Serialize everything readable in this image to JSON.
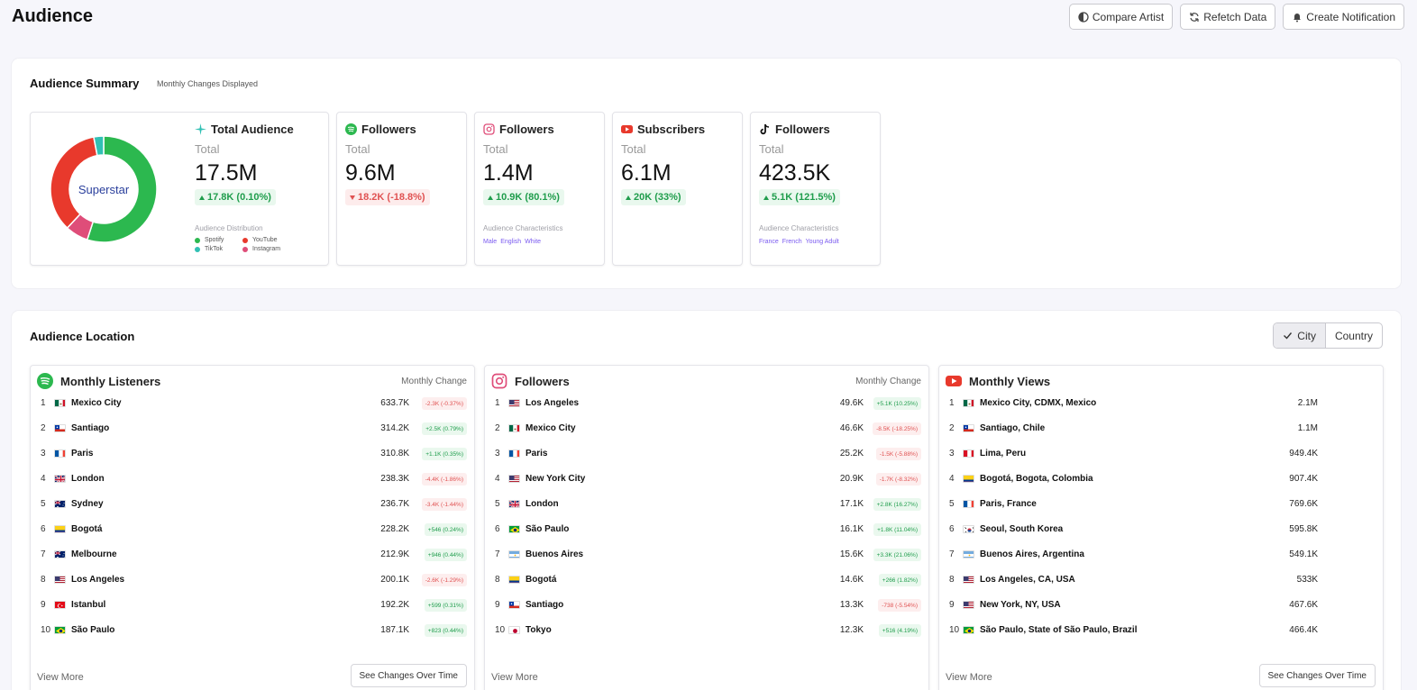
{
  "page": {
    "title": "Audience"
  },
  "actions": {
    "compare": "Compare Artist",
    "refetch": "Refetch Data",
    "notify": "Create Notification"
  },
  "colors": {
    "spotify": "#2cb84f",
    "youtube": "#e8392c",
    "tiktok": "#31c0b4",
    "instagram": "#df4d79",
    "accent_tag": "#7a5af0"
  },
  "summary": {
    "title": "Audience Summary",
    "subtitle": "Monthly Changes Displayed",
    "donut_label": "Superstar",
    "distribution_fractions": {
      "spotify": 0.55,
      "instagram": 0.07,
      "youtube": 0.35,
      "tiktok": 0.03
    },
    "total": {
      "title": "Total Audience",
      "icon": "sparkle-icon",
      "total_label": "Total",
      "value": "17.5M",
      "change": "17.8K (0.10%)",
      "direction": "up",
      "dist_label": "Audience Distribution",
      "legend": [
        "Spotify",
        "YouTube",
        "TikTok",
        "Instagram"
      ]
    },
    "cards": [
      {
        "title": "Followers",
        "icon": "spotify-icon",
        "total_label": "Total",
        "value": "9.6M",
        "change": "18.2K (-18.8%)",
        "direction": "down",
        "char_label": "",
        "tags": []
      },
      {
        "title": "Followers",
        "icon": "instagram-icon",
        "total_label": "Total",
        "value": "1.4M",
        "change": "10.9K (80.1%)",
        "direction": "up",
        "char_label": "Audience Characteristics",
        "tags": [
          "Male",
          "English",
          "White"
        ]
      },
      {
        "title": "Subscribers",
        "icon": "youtube-icon",
        "total_label": "Total",
        "value": "6.1M",
        "change": "20K (33%)",
        "direction": "up",
        "char_label": "",
        "tags": []
      },
      {
        "title": "Followers",
        "icon": "tiktok-icon",
        "total_label": "Total",
        "value": "423.5K",
        "change": "5.1K (121.5%)",
        "direction": "up",
        "char_label": "Audience Characteristics",
        "tags": [
          "France",
          "French",
          "Young Adult"
        ]
      }
    ]
  },
  "location": {
    "title": "Audience Location",
    "toggle": {
      "city": "City",
      "country": "Country",
      "selected": "City"
    },
    "view_more": "View More",
    "see_changes": "See Changes Over Time",
    "monthly_change_label": "Monthly Change",
    "spotify": {
      "title": "Monthly Listeners",
      "rows": [
        {
          "rank": "1",
          "flag": "mx",
          "name": "Mexico City",
          "value": "633.7K",
          "change": "-2.3K (-0.37%)",
          "dir": "down"
        },
        {
          "rank": "2",
          "flag": "cl",
          "name": "Santiago",
          "value": "314.2K",
          "change": "+2.5K (0.79%)",
          "dir": "up"
        },
        {
          "rank": "3",
          "flag": "fr",
          "name": "Paris",
          "value": "310.8K",
          "change": "+1.1K (0.35%)",
          "dir": "up"
        },
        {
          "rank": "4",
          "flag": "gb",
          "name": "London",
          "value": "238.3K",
          "change": "-4.4K (-1.86%)",
          "dir": "down"
        },
        {
          "rank": "5",
          "flag": "au",
          "name": "Sydney",
          "value": "236.7K",
          "change": "-3.4K (-1.44%)",
          "dir": "down"
        },
        {
          "rank": "6",
          "flag": "co",
          "name": "Bogotá",
          "value": "228.2K",
          "change": "+546 (0.24%)",
          "dir": "up"
        },
        {
          "rank": "7",
          "flag": "au",
          "name": "Melbourne",
          "value": "212.9K",
          "change": "+946 (0.44%)",
          "dir": "up"
        },
        {
          "rank": "8",
          "flag": "us",
          "name": "Los Angeles",
          "value": "200.1K",
          "change": "-2.6K (-1.29%)",
          "dir": "down"
        },
        {
          "rank": "9",
          "flag": "tr",
          "name": "Istanbul",
          "value": "192.2K",
          "change": "+599 (0.31%)",
          "dir": "up"
        },
        {
          "rank": "10",
          "flag": "br",
          "name": "São Paulo",
          "value": "187.1K",
          "change": "+823 (0.44%)",
          "dir": "up"
        }
      ]
    },
    "instagram": {
      "title": "Followers",
      "rows": [
        {
          "rank": "1",
          "flag": "us",
          "name": "Los Angeles",
          "value": "49.6K",
          "change": "+5.1K (10.25%)",
          "dir": "up"
        },
        {
          "rank": "2",
          "flag": "mx",
          "name": "Mexico City",
          "value": "46.6K",
          "change": "-8.5K (-18.25%)",
          "dir": "down"
        },
        {
          "rank": "3",
          "flag": "fr",
          "name": "Paris",
          "value": "25.2K",
          "change": "-1.5K (-5.88%)",
          "dir": "down"
        },
        {
          "rank": "4",
          "flag": "us",
          "name": "New York City",
          "value": "20.9K",
          "change": "-1.7K (-8.32%)",
          "dir": "down"
        },
        {
          "rank": "5",
          "flag": "gb",
          "name": "London",
          "value": "17.1K",
          "change": "+2.8K (16.27%)",
          "dir": "up"
        },
        {
          "rank": "6",
          "flag": "br",
          "name": "São Paulo",
          "value": "16.1K",
          "change": "+1.8K (11.04%)",
          "dir": "up"
        },
        {
          "rank": "7",
          "flag": "ar",
          "name": "Buenos Aires",
          "value": "15.6K",
          "change": "+3.3K (21.06%)",
          "dir": "up"
        },
        {
          "rank": "8",
          "flag": "co",
          "name": "Bogotá",
          "value": "14.6K",
          "change": "+266 (1.82%)",
          "dir": "up"
        },
        {
          "rank": "9",
          "flag": "cl",
          "name": "Santiago",
          "value": "13.3K",
          "change": "-738 (-5.54%)",
          "dir": "down"
        },
        {
          "rank": "10",
          "flag": "jp",
          "name": "Tokyo",
          "value": "12.3K",
          "change": "+516 (4.19%)",
          "dir": "up"
        }
      ]
    },
    "youtube": {
      "title": "Monthly Views",
      "rows": [
        {
          "rank": "1",
          "flag": "mx",
          "name": "Mexico City, CDMX, Mexico",
          "value": "2.1M"
        },
        {
          "rank": "2",
          "flag": "cl",
          "name": "Santiago, Chile",
          "value": "1.1M"
        },
        {
          "rank": "3",
          "flag": "pe",
          "name": "Lima, Peru",
          "value": "949.4K"
        },
        {
          "rank": "4",
          "flag": "co",
          "name": "Bogotá, Bogota, Colombia",
          "value": "907.4K"
        },
        {
          "rank": "5",
          "flag": "fr",
          "name": "Paris, France",
          "value": "769.6K"
        },
        {
          "rank": "6",
          "flag": "kr",
          "name": "Seoul, South Korea",
          "value": "595.8K"
        },
        {
          "rank": "7",
          "flag": "ar",
          "name": "Buenos Aires, Argentina",
          "value": "549.1K"
        },
        {
          "rank": "8",
          "flag": "us",
          "name": "Los Angeles, CA, USA",
          "value": "533K"
        },
        {
          "rank": "9",
          "flag": "us",
          "name": "New York, NY, USA",
          "value": "467.6K"
        },
        {
          "rank": "10",
          "flag": "br",
          "name": "São Paulo, State of São Paulo, Brazil",
          "value": "466.4K"
        }
      ]
    }
  }
}
